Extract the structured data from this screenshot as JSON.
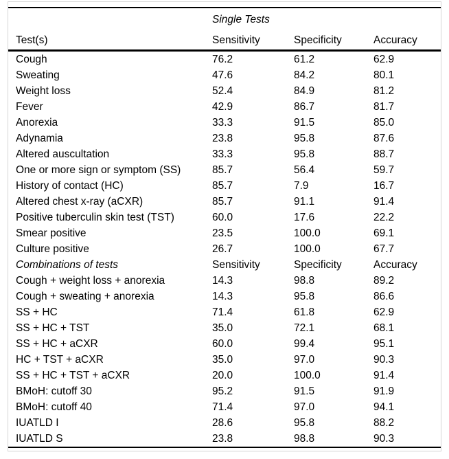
{
  "table": {
    "span_title": "Single Tests",
    "columns": [
      "Test(s)",
      "Sensitivity",
      "Specificity",
      "Accuracy"
    ],
    "sections": [
      {
        "rows": [
          [
            "Cough",
            "76.2",
            "61.2",
            "62.9"
          ],
          [
            "Sweating",
            "47.6",
            "84.2",
            "80.1"
          ],
          [
            "Weight loss",
            "52.4",
            "84.9",
            "81.2"
          ],
          [
            "Fever",
            "42.9",
            "86.7",
            "81.7"
          ],
          [
            "Anorexia",
            "33.3",
            "91.5",
            "85.0"
          ],
          [
            "Adynamia",
            "23.8",
            "95.8",
            "87.6"
          ],
          [
            "Altered auscultation",
            "33.3",
            "95.8",
            "88.7"
          ],
          [
            "One or more sign or symptom (SS)",
            "85.7",
            "56.4",
            "59.7"
          ],
          [
            "History of contact (HC)",
            "85.7",
            "7.9",
            "16.7"
          ],
          [
            "Altered chest x-ray (aCXR)",
            "85.7",
            "91.1",
            "91.4"
          ],
          [
            "Positive tuberculin skin test (TST)",
            "60.0",
            "17.6",
            "22.2"
          ],
          [
            "Smear positive",
            "23.5",
            "100.0",
            "69.1"
          ],
          [
            "Culture positive",
            "26.7",
            "100.0",
            "67.7"
          ]
        ]
      },
      {
        "header": {
          "label": "Combinations of tests",
          "columns": [
            "Sensitivity",
            "Specificity",
            "Accuracy"
          ]
        },
        "rows": [
          [
            "Cough + weight loss + anorexia",
            "14.3",
            "98.8",
            "89.2"
          ],
          [
            "Cough + sweating + anorexia",
            "14.3",
            "95.8",
            "86.6"
          ],
          [
            "SS + HC",
            "71.4",
            "61.8",
            "62.9"
          ],
          [
            "SS + HC + TST",
            "35.0",
            "72.1",
            "68.1"
          ],
          [
            "SS + HC + aCXR",
            "60.0",
            "99.4",
            "95.1"
          ],
          [
            "HC + TST + aCXR",
            "35.0",
            "97.0",
            "90.3"
          ],
          [
            "SS + HC + TST + aCXR",
            "20.0",
            "100.0",
            "91.4"
          ],
          [
            "BMoH: cutoff 30",
            "95.2",
            "91.5",
            "91.9"
          ],
          [
            "BMoH: cutoff 40",
            "71.4",
            "97.0",
            "94.1"
          ],
          [
            "IUATLD I",
            "28.6",
            "95.8",
            "88.2"
          ],
          [
            "IUATLD S",
            "23.8",
            "98.8",
            "90.3"
          ]
        ]
      }
    ]
  },
  "colors": {
    "rule": "#000000",
    "outer_border": "#d4d4d4",
    "text": "#000000",
    "background": "#ffffff"
  }
}
